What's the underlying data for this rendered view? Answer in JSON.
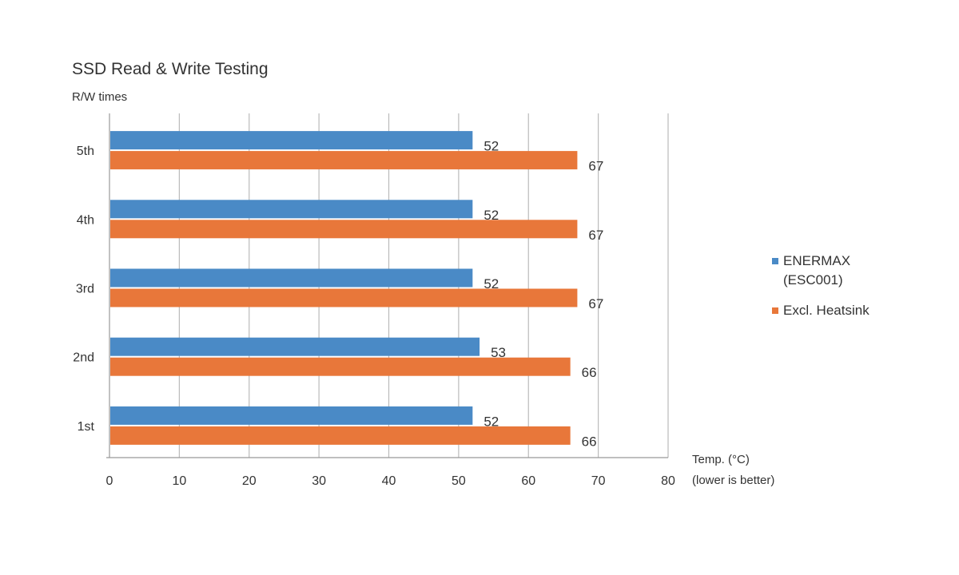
{
  "chart_data": {
    "type": "bar",
    "orientation": "horizontal",
    "title": "SSD Read & Write Testing",
    "ylabel": "R/W times",
    "xlabel": [
      "Temp. (°C)",
      "(lower is better)"
    ],
    "categories": [
      "5th",
      "4th",
      "3rd",
      "2nd",
      "1st"
    ],
    "series": [
      {
        "name": "ENERMAX (ESC001)",
        "legend_lines": [
          "ENERMAX",
          "(ESC001)"
        ],
        "color": "#4a8ac6",
        "values": [
          52,
          52,
          52,
          53,
          52
        ]
      },
      {
        "name": "Excl. Heatsink",
        "legend_lines": [
          "Excl. Heatsink"
        ],
        "color": "#e8773a",
        "values": [
          67,
          67,
          67,
          66,
          66
        ]
      }
    ],
    "xlim": [
      0,
      80
    ],
    "xticks": [
      0,
      10,
      20,
      30,
      40,
      50,
      60,
      70,
      80
    ],
    "grid": "vertical",
    "legend_position": "right",
    "data_labels": true
  }
}
